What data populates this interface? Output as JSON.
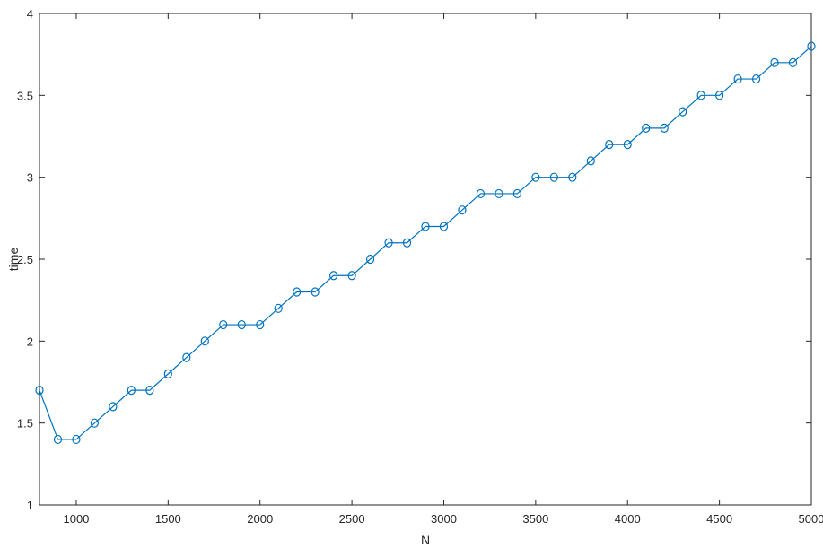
{
  "chart_data": {
    "type": "line",
    "title": "",
    "xlabel": "N",
    "ylabel": "time",
    "xlim": [
      800,
      5000
    ],
    "ylim": [
      1,
      4
    ],
    "xticks": [
      1000,
      1500,
      2000,
      2500,
      3000,
      3500,
      4000,
      4500,
      5000
    ],
    "yticks": [
      1,
      1.5,
      2,
      2.5,
      3,
      3.5,
      4
    ],
    "xtick_labels": [
      "1000",
      "1500",
      "2000",
      "2500",
      "3000",
      "3500",
      "4000",
      "4500",
      "5000"
    ],
    "ytick_labels": [
      "1",
      "1.5",
      "2",
      "2.5",
      "3",
      "3.5",
      "4"
    ],
    "grid": false,
    "marker": "circle",
    "color": "#0072bd",
    "series": [
      {
        "x": [
          800,
          900,
          1000,
          1100,
          1200,
          1300,
          1400,
          1500,
          1600,
          1700,
          1800,
          1900,
          2000,
          2100,
          2200,
          2300,
          2400,
          2500,
          2600,
          2700,
          2800,
          2900,
          3000,
          3100,
          3200,
          3300,
          3400,
          3500,
          3600,
          3700,
          3800,
          3900,
          4000,
          4100,
          4200,
          4300,
          4400,
          4500,
          4600,
          4700,
          4800,
          4900,
          5000
        ],
        "y": [
          1.7,
          1.4,
          1.4,
          1.5,
          1.6,
          1.7,
          1.7,
          1.8,
          1.9,
          2.0,
          2.1,
          2.1,
          2.1,
          2.2,
          2.3,
          2.3,
          2.4,
          2.4,
          2.5,
          2.6,
          2.6,
          2.7,
          2.7,
          2.8,
          2.9,
          2.9,
          2.9,
          3.0,
          3.0,
          3.0,
          3.1,
          3.2,
          3.2,
          3.3,
          3.3,
          3.4,
          3.5,
          3.5,
          3.6,
          3.6,
          3.7,
          3.7,
          3.8
        ]
      }
    ]
  }
}
